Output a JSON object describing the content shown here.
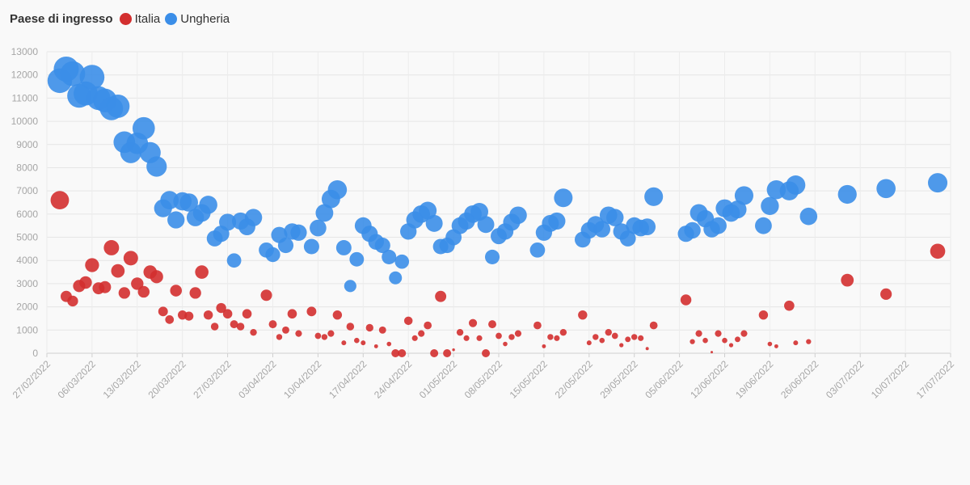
{
  "legend": {
    "title": "Paese di ingresso",
    "items": [
      {
        "label": "Italia",
        "color": "#d32f2f"
      },
      {
        "label": "Ungheria",
        "color": "#3b8ee8"
      }
    ]
  },
  "chart_data": {
    "type": "scatter",
    "title": "",
    "xlabel": "",
    "ylabel": "",
    "x_range": [
      "2022-02-27",
      "2022-07-17"
    ],
    "ylim": [
      0,
      13000
    ],
    "y_ticks": [
      "0",
      "1000",
      "2000",
      "3000",
      "4000",
      "5000",
      "6000",
      "7000",
      "8000",
      "9000",
      "10000",
      "11000",
      "12000",
      "13000"
    ],
    "x_ticks": [
      "27/02/2022",
      "06/03/2022",
      "13/03/2022",
      "20/03/2022",
      "27/03/2022",
      "03/04/2022",
      "10/04/2022",
      "17/04/2022",
      "24/04/2022",
      "01/05/2022",
      "08/05/2022",
      "15/05/2022",
      "22/05/2022",
      "29/05/2022",
      "05/06/2022",
      "12/06/2022",
      "19/06/2022",
      "26/06/2022",
      "03/07/2022",
      "10/07/2022",
      "17/07/2022"
    ],
    "x_tick_dates": [
      "2022-02-27",
      "2022-03-06",
      "2022-03-13",
      "2022-03-20",
      "2022-03-27",
      "2022-04-03",
      "2022-04-10",
      "2022-04-17",
      "2022-04-24",
      "2022-05-01",
      "2022-05-08",
      "2022-05-15",
      "2022-05-22",
      "2022-05-29",
      "2022-06-05",
      "2022-06-12",
      "2022-06-19",
      "2022-06-26",
      "2022-07-03",
      "2022-07-10",
      "2022-07-17"
    ],
    "grid": true,
    "legend_position": "top-left",
    "size_encodes": "y",
    "series": [
      {
        "name": "Italia",
        "color": "#d32f2f",
        "points": [
          [
            "2022-03-01",
            6600
          ],
          [
            "2022-03-02",
            2450
          ],
          [
            "2022-03-03",
            2250
          ],
          [
            "2022-03-04",
            2900
          ],
          [
            "2022-03-05",
            3050
          ],
          [
            "2022-03-06",
            3800
          ],
          [
            "2022-03-07",
            2800
          ],
          [
            "2022-03-08",
            2850
          ],
          [
            "2022-03-09",
            4550
          ],
          [
            "2022-03-10",
            3550
          ],
          [
            "2022-03-11",
            2600
          ],
          [
            "2022-03-12",
            4100
          ],
          [
            "2022-03-13",
            3000
          ],
          [
            "2022-03-14",
            2650
          ],
          [
            "2022-03-15",
            3500
          ],
          [
            "2022-03-16",
            3300
          ],
          [
            "2022-03-17",
            1800
          ],
          [
            "2022-03-18",
            1450
          ],
          [
            "2022-03-19",
            2700
          ],
          [
            "2022-03-20",
            1650
          ],
          [
            "2022-03-21",
            1600
          ],
          [
            "2022-03-22",
            2600
          ],
          [
            "2022-03-23",
            3500
          ],
          [
            "2022-03-24",
            1650
          ],
          [
            "2022-03-25",
            1150
          ],
          [
            "2022-03-26",
            1950
          ],
          [
            "2022-03-27",
            1700
          ],
          [
            "2022-03-28",
            1250
          ],
          [
            "2022-03-29",
            1150
          ],
          [
            "2022-03-30",
            1700
          ],
          [
            "2022-03-31",
            900
          ],
          [
            "2022-04-02",
            2500
          ],
          [
            "2022-04-03",
            1250
          ],
          [
            "2022-04-04",
            700
          ],
          [
            "2022-04-05",
            1000
          ],
          [
            "2022-04-06",
            1700
          ],
          [
            "2022-04-07",
            850
          ],
          [
            "2022-04-09",
            1800
          ],
          [
            "2022-04-10",
            750
          ],
          [
            "2022-04-11",
            700
          ],
          [
            "2022-04-12",
            850
          ],
          [
            "2022-04-13",
            1650
          ],
          [
            "2022-04-14",
            450
          ],
          [
            "2022-04-15",
            1150
          ],
          [
            "2022-04-16",
            550
          ],
          [
            "2022-04-17",
            450
          ],
          [
            "2022-04-18",
            1100
          ],
          [
            "2022-04-19",
            300
          ],
          [
            "2022-04-20",
            1000
          ],
          [
            "2022-04-21",
            400
          ],
          [
            "2022-04-22",
            0
          ],
          [
            "2022-04-23",
            0
          ],
          [
            "2022-04-24",
            1400
          ],
          [
            "2022-04-25",
            650
          ],
          [
            "2022-04-26",
            850
          ],
          [
            "2022-04-27",
            1200
          ],
          [
            "2022-04-28",
            0
          ],
          [
            "2022-04-29",
            2450
          ],
          [
            "2022-04-30",
            0
          ],
          [
            "2022-05-01",
            150
          ],
          [
            "2022-05-02",
            900
          ],
          [
            "2022-05-03",
            650
          ],
          [
            "2022-05-04",
            1300
          ],
          [
            "2022-05-05",
            650
          ],
          [
            "2022-05-06",
            0
          ],
          [
            "2022-05-07",
            1250
          ],
          [
            "2022-05-08",
            750
          ],
          [
            "2022-05-09",
            400
          ],
          [
            "2022-05-10",
            700
          ],
          [
            "2022-05-11",
            850
          ],
          [
            "2022-05-14",
            1200
          ],
          [
            "2022-05-15",
            300
          ],
          [
            "2022-05-16",
            700
          ],
          [
            "2022-05-17",
            650
          ],
          [
            "2022-05-18",
            900
          ],
          [
            "2022-05-21",
            1650
          ],
          [
            "2022-05-22",
            450
          ],
          [
            "2022-05-23",
            700
          ],
          [
            "2022-05-24",
            550
          ],
          [
            "2022-05-25",
            900
          ],
          [
            "2022-05-26",
            750
          ],
          [
            "2022-05-27",
            350
          ],
          [
            "2022-05-28",
            600
          ],
          [
            "2022-05-29",
            700
          ],
          [
            "2022-05-30",
            650
          ],
          [
            "2022-05-31",
            200
          ],
          [
            "2022-06-01",
            1200
          ],
          [
            "2022-06-06",
            2300
          ],
          [
            "2022-06-07",
            500
          ],
          [
            "2022-06-08",
            850
          ],
          [
            "2022-06-09",
            550
          ],
          [
            "2022-06-10",
            50
          ],
          [
            "2022-06-11",
            850
          ],
          [
            "2022-06-12",
            550
          ],
          [
            "2022-06-13",
            350
          ],
          [
            "2022-06-14",
            600
          ],
          [
            "2022-06-15",
            850
          ],
          [
            "2022-06-18",
            1650
          ],
          [
            "2022-06-19",
            400
          ],
          [
            "2022-06-20",
            300
          ],
          [
            "2022-06-22",
            2050
          ],
          [
            "2022-06-23",
            450
          ],
          [
            "2022-06-25",
            500
          ],
          [
            "2022-07-01",
            3150
          ],
          [
            "2022-07-07",
            2550
          ],
          [
            "2022-07-15",
            4400
          ]
        ]
      },
      {
        "name": "Ungheria",
        "color": "#3b8ee8",
        "points": [
          [
            "2022-03-01",
            11750
          ],
          [
            "2022-03-02",
            12250
          ],
          [
            "2022-03-03",
            12050
          ],
          [
            "2022-03-04",
            11100
          ],
          [
            "2022-03-05",
            11200
          ],
          [
            "2022-03-06",
            11900
          ],
          [
            "2022-03-07",
            11000
          ],
          [
            "2022-03-08",
            10900
          ],
          [
            "2022-03-09",
            10550
          ],
          [
            "2022-03-10",
            10650
          ],
          [
            "2022-03-11",
            9100
          ],
          [
            "2022-03-12",
            8650
          ],
          [
            "2022-03-13",
            9050
          ],
          [
            "2022-03-14",
            9700
          ],
          [
            "2022-03-15",
            8650
          ],
          [
            "2022-03-16",
            8050
          ],
          [
            "2022-03-17",
            6250
          ],
          [
            "2022-03-18",
            6600
          ],
          [
            "2022-03-19",
            5750
          ],
          [
            "2022-03-20",
            6550
          ],
          [
            "2022-03-21",
            6500
          ],
          [
            "2022-03-22",
            5850
          ],
          [
            "2022-03-23",
            6050
          ],
          [
            "2022-03-24",
            6400
          ],
          [
            "2022-03-25",
            4950
          ],
          [
            "2022-03-26",
            5150
          ],
          [
            "2022-03-27",
            5650
          ],
          [
            "2022-03-28",
            4000
          ],
          [
            "2022-03-29",
            5700
          ],
          [
            "2022-03-30",
            5450
          ],
          [
            "2022-03-31",
            5850
          ],
          [
            "2022-04-02",
            4450
          ],
          [
            "2022-04-03",
            4250
          ],
          [
            "2022-04-04",
            5100
          ],
          [
            "2022-04-05",
            4650
          ],
          [
            "2022-04-06",
            5250
          ],
          [
            "2022-04-07",
            5200
          ],
          [
            "2022-04-09",
            4600
          ],
          [
            "2022-04-10",
            5400
          ],
          [
            "2022-04-11",
            6050
          ],
          [
            "2022-04-12",
            6650
          ],
          [
            "2022-04-13",
            7050
          ],
          [
            "2022-04-14",
            4550
          ],
          [
            "2022-04-15",
            2900
          ],
          [
            "2022-04-16",
            4050
          ],
          [
            "2022-04-17",
            5500
          ],
          [
            "2022-04-18",
            5150
          ],
          [
            "2022-04-19",
            4800
          ],
          [
            "2022-04-20",
            4650
          ],
          [
            "2022-04-21",
            4150
          ],
          [
            "2022-04-22",
            3250
          ],
          [
            "2022-04-23",
            3950
          ],
          [
            "2022-04-24",
            5250
          ],
          [
            "2022-04-25",
            5750
          ],
          [
            "2022-04-26",
            6000
          ],
          [
            "2022-04-27",
            6150
          ],
          [
            "2022-04-28",
            5600
          ],
          [
            "2022-04-29",
            4600
          ],
          [
            "2022-04-30",
            4650
          ],
          [
            "2022-05-01",
            5000
          ],
          [
            "2022-05-02",
            5500
          ],
          [
            "2022-05-03",
            5700
          ],
          [
            "2022-05-04",
            6000
          ],
          [
            "2022-05-05",
            6100
          ],
          [
            "2022-05-06",
            5550
          ],
          [
            "2022-05-07",
            4150
          ],
          [
            "2022-05-08",
            5050
          ],
          [
            "2022-05-09",
            5250
          ],
          [
            "2022-05-10",
            5650
          ],
          [
            "2022-05-11",
            5950
          ],
          [
            "2022-05-14",
            4450
          ],
          [
            "2022-05-15",
            5200
          ],
          [
            "2022-05-16",
            5600
          ],
          [
            "2022-05-17",
            5700
          ],
          [
            "2022-05-18",
            6700
          ],
          [
            "2022-05-21",
            4900
          ],
          [
            "2022-05-22",
            5300
          ],
          [
            "2022-05-23",
            5550
          ],
          [
            "2022-05-24",
            5350
          ],
          [
            "2022-05-25",
            5950
          ],
          [
            "2022-05-26",
            5850
          ],
          [
            "2022-05-27",
            5250
          ],
          [
            "2022-05-28",
            4950
          ],
          [
            "2022-05-29",
            5500
          ],
          [
            "2022-05-30",
            5400
          ],
          [
            "2022-05-31",
            5450
          ],
          [
            "2022-06-01",
            6750
          ],
          [
            "2022-06-06",
            5150
          ],
          [
            "2022-06-07",
            5300
          ],
          [
            "2022-06-08",
            6050
          ],
          [
            "2022-06-09",
            5800
          ],
          [
            "2022-06-10",
            5350
          ],
          [
            "2022-06-11",
            5500
          ],
          [
            "2022-06-12",
            6250
          ],
          [
            "2022-06-13",
            6050
          ],
          [
            "2022-06-14",
            6200
          ],
          [
            "2022-06-15",
            6800
          ],
          [
            "2022-06-18",
            5500
          ],
          [
            "2022-06-19",
            6350
          ],
          [
            "2022-06-20",
            7050
          ],
          [
            "2022-06-22",
            7000
          ],
          [
            "2022-06-23",
            7250
          ],
          [
            "2022-06-25",
            5900
          ],
          [
            "2022-07-01",
            6850
          ],
          [
            "2022-07-07",
            7100
          ],
          [
            "2022-07-15",
            7350
          ]
        ]
      }
    ]
  }
}
